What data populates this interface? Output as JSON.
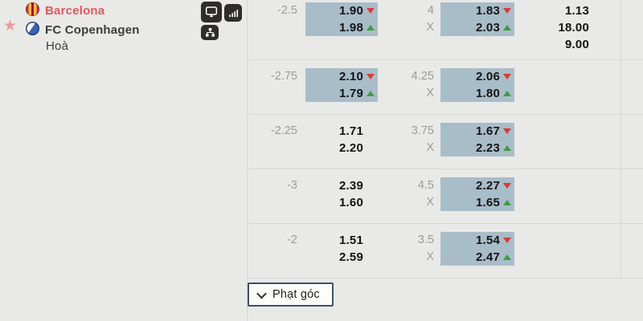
{
  "colors": {
    "background": "#e9e9e7",
    "highlight_cell": "#a9bdc9",
    "trend_down_arrow": "#d63c38",
    "trend_up_arrow": "#3f9e3f",
    "home_team_text": "#e0595c",
    "muted_label": "#9b9b9b",
    "divider": "#d7d6d4",
    "icon_badge": "#2e2d2b",
    "button_border": "#404f66"
  },
  "match_panel": {
    "home_team": "Barcelona",
    "away_team": "FC Copenhagen",
    "draw_label": "Hoà",
    "favorite_icon": "star",
    "action_icons": [
      "live-tv",
      "statistics",
      "lineup"
    ]
  },
  "odds_table": {
    "rows": [
      {
        "handicap": "-2.5",
        "handicap_odds": {
          "highlight": true,
          "top": {
            "value": "1.90",
            "trend": "down"
          },
          "bottom": {
            "value": "1.98",
            "trend": "up"
          }
        },
        "total_line": "4",
        "draw_mark": "X",
        "total_odds": {
          "highlight": true,
          "top": {
            "value": "1.83",
            "trend": "down"
          },
          "bottom": {
            "value": "2.03",
            "trend": "up"
          }
        },
        "match_odds": [
          "1.13",
          "18.00",
          "9.00"
        ]
      },
      {
        "handicap": "-2.75",
        "handicap_odds": {
          "highlight": true,
          "top": {
            "value": "2.10",
            "trend": "down"
          },
          "bottom": {
            "value": "1.79",
            "trend": "up"
          }
        },
        "total_line": "4.25",
        "draw_mark": "X",
        "total_odds": {
          "highlight": true,
          "top": {
            "value": "2.06",
            "trend": "down"
          },
          "bottom": {
            "value": "1.80",
            "trend": "up"
          }
        },
        "match_odds": []
      },
      {
        "handicap": "-2.25",
        "handicap_odds": {
          "highlight": false,
          "top": {
            "value": "1.71",
            "trend": "none"
          },
          "bottom": {
            "value": "2.20",
            "trend": "none"
          }
        },
        "total_line": "3.75",
        "draw_mark": "X",
        "total_odds": {
          "highlight": true,
          "top": {
            "value": "1.67",
            "trend": "down"
          },
          "bottom": {
            "value": "2.23",
            "trend": "up"
          }
        },
        "match_odds": []
      },
      {
        "handicap": "-3",
        "handicap_odds": {
          "highlight": false,
          "top": {
            "value": "2.39",
            "trend": "none"
          },
          "bottom": {
            "value": "1.60",
            "trend": "none"
          }
        },
        "total_line": "4.5",
        "draw_mark": "X",
        "total_odds": {
          "highlight": true,
          "top": {
            "value": "2.27",
            "trend": "down"
          },
          "bottom": {
            "value": "1.65",
            "trend": "up"
          }
        },
        "match_odds": []
      },
      {
        "handicap": "-2",
        "handicap_odds": {
          "highlight": false,
          "top": {
            "value": "1.51",
            "trend": "none"
          },
          "bottom": {
            "value": "2.59",
            "trend": "none"
          }
        },
        "total_line": "3.5",
        "draw_mark": "X",
        "total_odds": {
          "highlight": true,
          "top": {
            "value": "1.54",
            "trend": "down"
          },
          "bottom": {
            "value": "2.47",
            "trend": "up"
          }
        },
        "match_odds": []
      }
    ]
  },
  "footer": {
    "market_button": {
      "label": "Phạt góc",
      "icon": "chevron-down"
    }
  }
}
